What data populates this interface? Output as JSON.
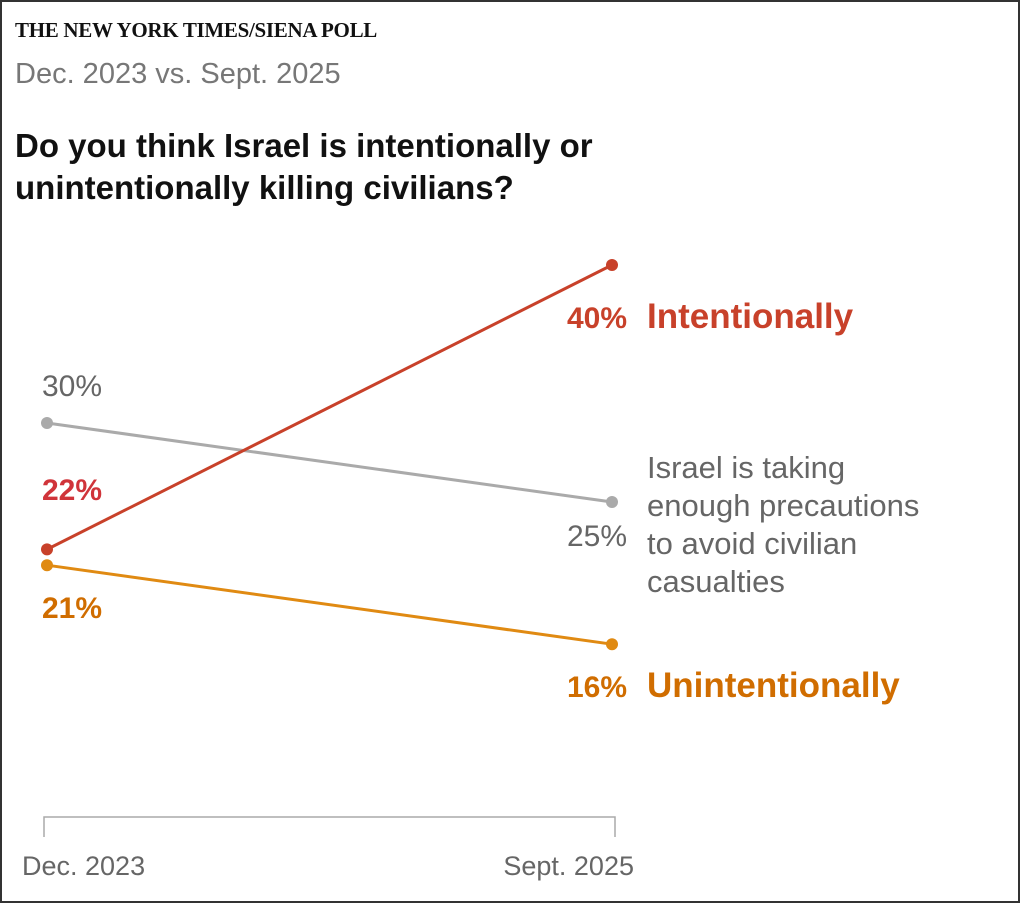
{
  "header": {
    "kicker": "THE NEW YORK TIMES/SIENA POLL",
    "subtitle": "Dec. 2023 vs. Sept. 2025",
    "title": "Do you think Israel is intentionally or unintentionally killing civilians?"
  },
  "chart_data": {
    "type": "line",
    "title": "Do you think Israel is intentionally or unintentionally killing civilians?",
    "subtitle": "Dec. 2023 vs. Sept. 2025",
    "x": [
      "Dec. 2023",
      "Sept. 2025"
    ],
    "xlabel": "",
    "ylabel": "",
    "grid": false,
    "series": [
      {
        "name": "Intentionally",
        "label_lines": [
          "Intentionally"
        ],
        "values": [
          22,
          40
        ],
        "value_labels": [
          "22%",
          "40%"
        ],
        "color": "#c8412a",
        "start_label_color": "#d0343a",
        "bold": true
      },
      {
        "name": "Israel is taking enough precautions to avoid civilian casualties",
        "label_lines": [
          "Israel is taking",
          "enough precautions",
          "to avoid civilian",
          "casualties"
        ],
        "values": [
          30,
          25
        ],
        "value_labels": [
          "30%",
          "25%"
        ],
        "color": "#aaaaaa",
        "text_color": "#666666",
        "bold": false
      },
      {
        "name": "Unintentionally",
        "label_lines": [
          "Unintentionally"
        ],
        "values": [
          21,
          16
        ],
        "value_labels": [
          "21%",
          "16%"
        ],
        "color": "#e08a12",
        "text_color": "#d06d00",
        "bold": true
      }
    ]
  }
}
